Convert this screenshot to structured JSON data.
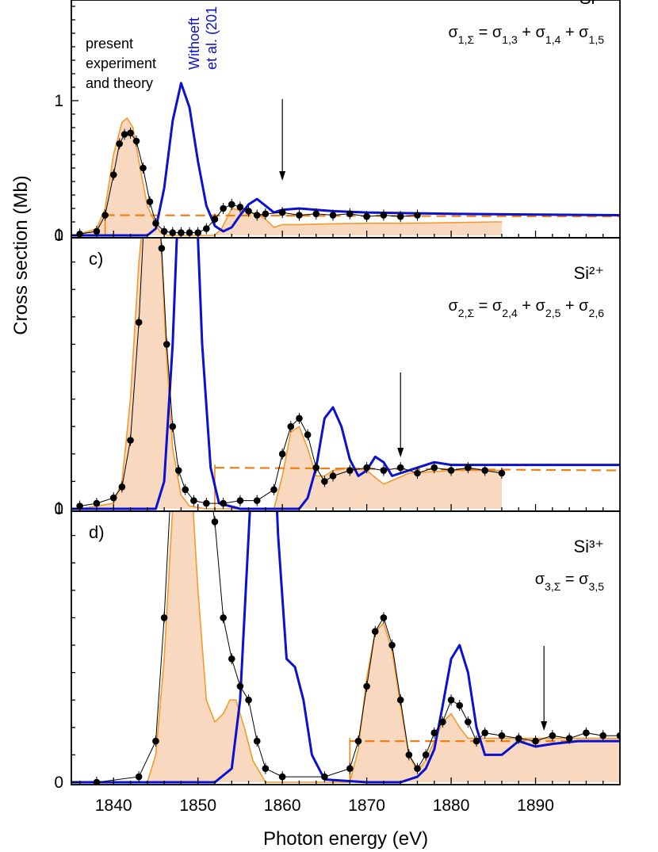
{
  "figure": {
    "ylabel": "Cross section (Mb)",
    "xlabel": "Photon energy (eV)",
    "x_ticks": [
      "1840",
      "1850",
      "1860",
      "1870",
      "1880",
      "1890"
    ],
    "legend_text": [
      "present",
      "experiment",
      "and theory"
    ],
    "ref_label_1": "Withoeft",
    "ref_label_2": "et al. (201"
  },
  "colors": {
    "experiment": "#000000",
    "present_theory_fill": "#f8d9bf",
    "present_theory_line": "#f39a2d",
    "reference_theory": "#0a12d0",
    "dashed_line": "#f07f14"
  },
  "chart_data": [
    {
      "type": "line",
      "panel_label": "",
      "ion": "Si⁺",
      "formula": "σ1,Σ = σ1,3 + σ1,4 + σ1,5",
      "xlim": [
        1835,
        1900
      ],
      "ylim": [
        0,
        1.8
      ],
      "yticks": [
        0,
        1
      ],
      "arrow_x": 1860,
      "series": [
        {
          "name": "present experiment",
          "x": [
            1836,
            1838,
            1839,
            1840,
            1840.7,
            1841.3,
            1842,
            1842.7,
            1843.5,
            1844.3,
            1845,
            1846,
            1847,
            1848,
            1849,
            1850,
            1851,
            1852,
            1853,
            1854,
            1855,
            1856,
            1857,
            1858,
            1860,
            1862,
            1864,
            1866,
            1868,
            1870,
            1872,
            1874,
            1876
          ],
          "y": [
            0.01,
            0.03,
            0.15,
            0.45,
            0.68,
            0.75,
            0.76,
            0.7,
            0.5,
            0.25,
            0.09,
            0.03,
            0.02,
            0.02,
            0.02,
            0.02,
            0.05,
            0.12,
            0.2,
            0.23,
            0.21,
            0.18,
            0.15,
            0.16,
            0.17,
            0.15,
            0.16,
            0.15,
            0.16,
            0.14,
            0.15,
            0.14,
            0.15
          ]
        },
        {
          "name": "present theory",
          "x": [
            1836,
            1838,
            1839,
            1840,
            1841,
            1841.6,
            1842.3,
            1843,
            1844,
            1845,
            1845.6,
            1846.5,
            1847.5,
            1850,
            1852,
            1852.8,
            1854,
            1855.5,
            1857,
            1858,
            1859,
            1860,
            1862,
            1865,
            1870,
            1875,
            1880,
            1885,
            1886
          ],
          "y": [
            0.01,
            0.05,
            0.2,
            0.6,
            0.84,
            0.87,
            0.8,
            0.55,
            0.22,
            0.08,
            0.02,
            0.0,
            0.0,
            0.0,
            0.0,
            0.05,
            0.2,
            0.18,
            0.16,
            0.12,
            0.06,
            0.08,
            0.08,
            0.085,
            0.09,
            0.09,
            0.095,
            0.1,
            0.1
          ]
        },
        {
          "name": "Withoeft et al. (201",
          "x": [
            1835,
            1844,
            1845,
            1846,
            1847,
            1848,
            1849,
            1850,
            1851,
            1852,
            1853,
            1854,
            1855,
            1856,
            1857,
            1858,
            1859,
            1860,
            1862,
            1864,
            1866,
            1870,
            1880,
            1900
          ],
          "y": [
            0,
            0,
            0.05,
            0.35,
            0.85,
            1.13,
            0.95,
            0.55,
            0.22,
            0.07,
            0.03,
            0.06,
            0.15,
            0.23,
            0.27,
            0.22,
            0.17,
            0.19,
            0.2,
            0.19,
            0.18,
            0.17,
            0.16,
            0.15
          ]
        },
        {
          "name": "dashed",
          "x": [
            1839,
            1900
          ],
          "y": [
            0.15,
            0.14
          ]
        }
      ]
    },
    {
      "type": "line",
      "panel_label": "c)",
      "ion": "Si²⁺",
      "formula": "σ2,Σ = σ2,4 + σ2,5 + σ2,6",
      "xlim": [
        1835,
        1900
      ],
      "ylim": [
        0,
        1.8
      ],
      "yticks": [
        0,
        1
      ],
      "arrow_x": 1874,
      "series": [
        {
          "name": "present experiment",
          "x": [
            1836,
            1838,
            1840,
            1841,
            1842,
            1843,
            1843.6,
            1844.3,
            1845,
            1845.7,
            1846.3,
            1847,
            1847.7,
            1848.5,
            1849.5,
            1851,
            1853,
            1855,
            1857,
            1859,
            1860,
            1861,
            1862,
            1863,
            1864,
            1865,
            1866,
            1868,
            1870,
            1872,
            1874,
            1876,
            1878,
            1880,
            1882,
            1884,
            1886
          ],
          "y": [
            0.01,
            0.02,
            0.04,
            0.08,
            0.25,
            0.68,
            1.05,
            1.28,
            1.22,
            0.95,
            0.6,
            0.3,
            0.14,
            0.07,
            0.03,
            0.02,
            0.02,
            0.03,
            0.03,
            0.07,
            0.2,
            0.3,
            0.33,
            0.27,
            0.15,
            0.1,
            0.12,
            0.14,
            0.15,
            0.14,
            0.15,
            0.13,
            0.15,
            0.14,
            0.15,
            0.14,
            0.13
          ]
        },
        {
          "name": "present theory",
          "x": [
            1836,
            1840,
            1841,
            1842,
            1843,
            1844,
            1844.7,
            1845.5,
            1846.2,
            1847,
            1848,
            1849,
            1851,
            1852,
            1859,
            1860,
            1861,
            1862,
            1863,
            1864,
            1865,
            1866,
            1868,
            1870,
            1872,
            1875,
            1880,
            1885,
            1886
          ],
          "y": [
            0,
            0.02,
            0.1,
            0.4,
            0.9,
            1.22,
            1.28,
            1.05,
            0.6,
            0.22,
            0.05,
            0.01,
            0.0,
            0.0,
            0.0,
            0.12,
            0.28,
            0.3,
            0.22,
            0.12,
            0.12,
            0.14,
            0.15,
            0.14,
            0.09,
            0.13,
            0.14,
            0.14,
            0.14
          ]
        },
        {
          "name": "Withoeft et al. (201",
          "x": [
            1835,
            1845,
            1846,
            1847,
            1848,
            1848.8,
            1849.6,
            1850.5,
            1851.5,
            1852.5,
            1855,
            1862,
            1863,
            1864,
            1865,
            1866,
            1867,
            1868,
            1869,
            1870,
            1871,
            1872,
            1873,
            1874,
            1876,
            1878,
            1880,
            1885,
            1890,
            1900
          ],
          "y": [
            0,
            0,
            0.1,
            0.6,
            1.38,
            1.62,
            1.3,
            0.6,
            0.15,
            0.02,
            0,
            0,
            0.04,
            0.15,
            0.33,
            0.37,
            0.3,
            0.18,
            0.12,
            0.14,
            0.19,
            0.17,
            0.12,
            0.13,
            0.15,
            0.17,
            0.16,
            0.16,
            0.16,
            0.16
          ]
        },
        {
          "name": "dashed",
          "x": [
            1852,
            1900
          ],
          "y": [
            0.15,
            0.14
          ]
        }
      ]
    },
    {
      "type": "line",
      "panel_label": "d)",
      "ion": "Si³⁺",
      "formula": "σ3,Σ = σ3,5",
      "xlim": [
        1835,
        1900
      ],
      "ylim": [
        0,
        1.8
      ],
      "yticks": [
        0,
        1
      ],
      "arrow_x": 1891,
      "series": [
        {
          "name": "present experiment",
          "x": [
            1838,
            1843,
            1845,
            1846,
            1847,
            1848,
            1849,
            1850,
            1851,
            1852,
            1853,
            1854,
            1855,
            1856,
            1857,
            1858,
            1860,
            1865,
            1868,
            1869,
            1870,
            1871,
            1872,
            1873,
            1874,
            1875,
            1876,
            1877,
            1878,
            1879,
            1880,
            1881,
            1882,
            1883,
            1884,
            1886,
            1888,
            1890,
            1892,
            1894,
            1896,
            1898,
            1900
          ],
          "y": [
            0,
            0.02,
            0.15,
            0.6,
            1.2,
            1.38,
            1.35,
            1.28,
            1.15,
            0.95,
            0.6,
            0.45,
            0.35,
            0.3,
            0.15,
            0.05,
            0.02,
            0.02,
            0.05,
            0.15,
            0.35,
            0.55,
            0.6,
            0.5,
            0.3,
            0.1,
            0.05,
            0.1,
            0.18,
            0.22,
            0.3,
            0.28,
            0.22,
            0.15,
            0.18,
            0.17,
            0.16,
            0.15,
            0.17,
            0.16,
            0.18,
            0.17,
            0.17
          ]
        },
        {
          "name": "present theory",
          "x": [
            1844,
            1845,
            1846,
            1847,
            1848,
            1849,
            1850,
            1851,
            1852,
            1853,
            1853.8,
            1854.5,
            1855.5,
            1856.5,
            1858,
            1868,
            1869,
            1870,
            1871,
            1872,
            1873,
            1874,
            1875,
            1876,
            1877,
            1878,
            1879,
            1880,
            1881,
            1882,
            1885,
            1890,
            1895,
            1900
          ],
          "y": [
            0,
            0.1,
            0.45,
            1.0,
            1.32,
            1.22,
            0.7,
            0.3,
            0.22,
            0.25,
            0.3,
            0.3,
            0.2,
            0.08,
            0,
            0.0,
            0.12,
            0.38,
            0.55,
            0.58,
            0.48,
            0.28,
            0.1,
            0.04,
            0.08,
            0.15,
            0.22,
            0.25,
            0.2,
            0.16,
            0.16,
            0.16,
            0.16,
            0.16
          ]
        },
        {
          "name": "Withoeft et al. (201",
          "x": [
            1835,
            1852,
            1854,
            1855,
            1856,
            1857,
            1857.8,
            1858.6,
            1859.5,
            1860.5,
            1861.5,
            1862.5,
            1863.5,
            1865,
            1870,
            1874,
            1876,
            1877,
            1878,
            1879,
            1880,
            1881,
            1882,
            1883,
            1884,
            1886,
            1888,
            1890,
            1892,
            1895,
            1900
          ],
          "y": [
            0,
            0,
            0.05,
            0.3,
            0.9,
            1.5,
            1.78,
            1.55,
            0.9,
            0.45,
            0.42,
            0.3,
            0.1,
            0.01,
            0,
            0,
            0.02,
            0.05,
            0.12,
            0.28,
            0.45,
            0.5,
            0.4,
            0.2,
            0.1,
            0.1,
            0.15,
            0.13,
            0.14,
            0.15,
            0.15
          ]
        },
        {
          "name": "dashed",
          "x": [
            1868,
            1900
          ],
          "y": [
            0.15,
            0.15
          ]
        }
      ]
    }
  ]
}
